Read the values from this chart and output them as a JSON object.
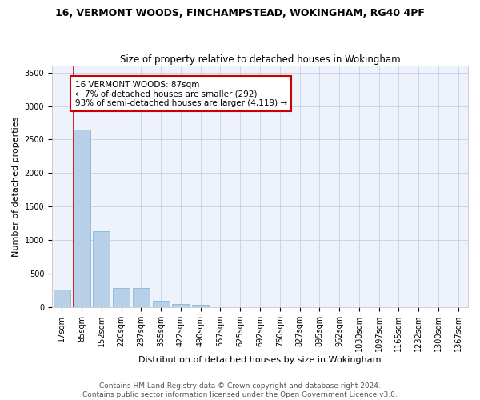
{
  "title": "16, VERMONT WOODS, FINCHAMPSTEAD, WOKINGHAM, RG40 4PF",
  "subtitle": "Size of property relative to detached houses in Wokingham",
  "xlabel": "Distribution of detached houses by size in Wokingham",
  "ylabel": "Number of detached properties",
  "bar_color": "#b8cfe8",
  "bar_edge_color": "#7aadd4",
  "background_color": "#eef2fa",
  "grid_color": "#c8d0e8",
  "annotation_box_color": "#cc0000",
  "annotation_text": "16 VERMONT WOODS: 87sqm\n← 7% of detached houses are smaller (292)\n93% of semi-detached houses are larger (4,119) →",
  "vline_color": "#cc0000",
  "categories": [
    "17sqm",
    "85sqm",
    "152sqm",
    "220sqm",
    "287sqm",
    "355sqm",
    "422sqm",
    "490sqm",
    "557sqm",
    "625sqm",
    "692sqm",
    "760sqm",
    "827sqm",
    "895sqm",
    "962sqm",
    "1030sqm",
    "1097sqm",
    "1165sqm",
    "1232sqm",
    "1300sqm",
    "1367sqm"
  ],
  "values": [
    270,
    2650,
    1140,
    285,
    285,
    95,
    55,
    40,
    0,
    0,
    0,
    0,
    0,
    0,
    0,
    0,
    0,
    0,
    0,
    0,
    0
  ],
  "ylim": [
    0,
    3600
  ],
  "yticks": [
    0,
    500,
    1000,
    1500,
    2000,
    2500,
    3000,
    3500
  ],
  "footnote": "Contains HM Land Registry data © Crown copyright and database right 2024.\nContains public sector information licensed under the Open Government Licence v3.0.",
  "title_fontsize": 9,
  "subtitle_fontsize": 8.5,
  "xlabel_fontsize": 8,
  "ylabel_fontsize": 8,
  "tick_fontsize": 7,
  "footnote_fontsize": 6.5,
  "annotation_fontsize": 7.5
}
